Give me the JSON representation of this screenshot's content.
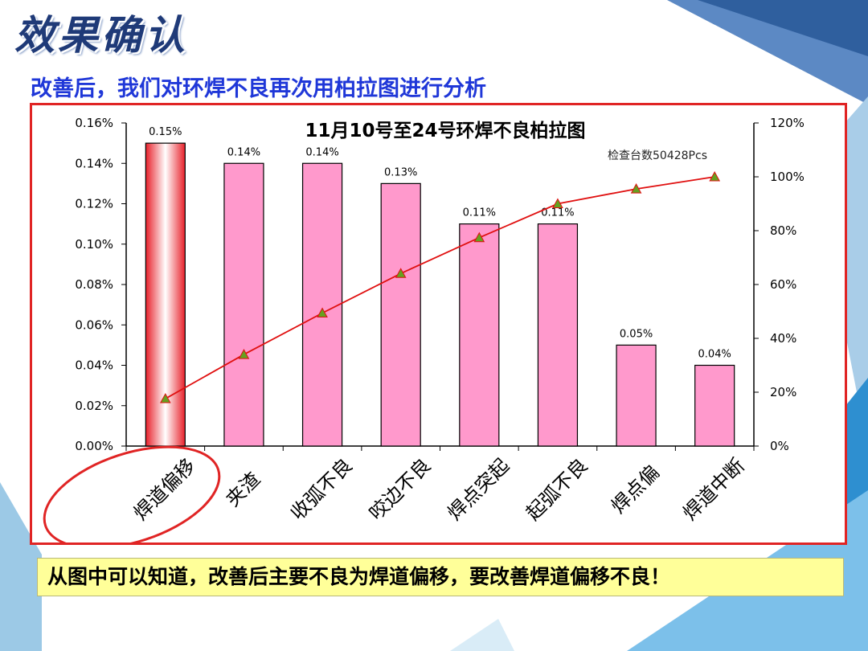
{
  "slide": {
    "title": "效果确认",
    "subtitle": "改善后，我们对环焊不良再次用柏拉图进行分析",
    "conclusion": "从图中可以知道，改善后主要不良为焊道偏移，要改善焊道偏移不良！"
  },
  "colors": {
    "bar": "#ff99cc",
    "highlight_bar": "#e8202a",
    "line": "#e01010",
    "marker_fill": "#66a020",
    "frame": "#e02424",
    "accent_blue": "#1f37d8"
  },
  "chart_data": {
    "type": "bar",
    "title": "11月10号至24号环焊不良柏拉图",
    "note": "检查台数50428Pcs",
    "categories": [
      "焊道偏移",
      "夹渣",
      "收弧不良",
      "咬边不良",
      "焊点突起",
      "起弧不良",
      "焊点偏",
      "焊道中断"
    ],
    "series": [
      {
        "type": "bar",
        "axis": "left",
        "values": [
          0.15,
          0.14,
          0.14,
          0.13,
          0.11,
          0.11,
          0.05,
          0.04
        ],
        "data_labels": [
          "0.15%",
          "0.14%",
          "0.14%",
          "0.13%",
          "0.11%",
          "0.11%",
          "0.05%",
          "0.04%"
        ]
      },
      {
        "type": "line",
        "axis": "right",
        "values": [
          17.6,
          34.0,
          49.4,
          64.1,
          77.4,
          90.0,
          95.5,
          100
        ]
      }
    ],
    "left_axis": {
      "range": [
        0,
        0.16
      ],
      "ticks": [
        "0.00%",
        "0.02%",
        "0.04%",
        "0.06%",
        "0.08%",
        "0.10%",
        "0.12%",
        "0.14%",
        "0.16%"
      ]
    },
    "right_axis": {
      "range": [
        0,
        120
      ],
      "ticks": [
        "0%",
        "20%",
        "40%",
        "60%",
        "80%",
        "100%",
        "120%"
      ]
    },
    "highlighted_category": "焊道偏移",
    "grid": false,
    "legend": "none"
  }
}
